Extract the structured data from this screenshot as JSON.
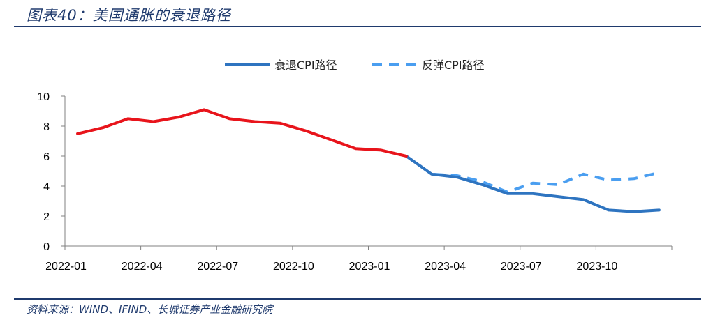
{
  "header": {
    "title": "图表40：美国通胀的衰退路径"
  },
  "footer": {
    "source": "资料来源：WIND、IFIND、长城证券产业金融研究院"
  },
  "colors": {
    "title": "#1f3a6d",
    "historical": "#e8141b",
    "recession": "#2e74c0",
    "rebound": "#4a9ef0"
  },
  "chart_data": {
    "type": "line",
    "ylim": [
      0,
      10
    ],
    "y_ticks": [
      "0",
      "2",
      "4",
      "6",
      "8",
      "10"
    ],
    "x_tick_labels": [
      {
        "label": "2022-01",
        "index": 0
      },
      {
        "label": "2022-04",
        "index": 3
      },
      {
        "label": "2022-07",
        "index": 6
      },
      {
        "label": "2022-10",
        "index": 9
      },
      {
        "label": "2023-01",
        "index": 12
      },
      {
        "label": "2023-04",
        "index": 15
      },
      {
        "label": "2023-07",
        "index": 18
      },
      {
        "label": "2023-10",
        "index": 21
      }
    ],
    "legend": {
      "position": "top-center",
      "items": [
        {
          "label": "衰退CPI路径",
          "series": "recession"
        },
        {
          "label": "反弹CPI路径",
          "series": "rebound"
        }
      ]
    },
    "series": [
      {
        "id": "historical",
        "style": "solid",
        "x": [
          "2022-01",
          "2022-02",
          "2022-03",
          "2022-04",
          "2022-05",
          "2022-06",
          "2022-07",
          "2022-08",
          "2022-09",
          "2022-10",
          "2022-11",
          "2022-12",
          "2023-01",
          "2023-02"
        ],
        "values": [
          7.5,
          7.9,
          8.5,
          8.3,
          8.6,
          9.1,
          8.5,
          8.3,
          8.2,
          7.7,
          7.1,
          6.5,
          6.4,
          6.0
        ]
      },
      {
        "name": "衰退CPI路径",
        "id": "recession",
        "style": "solid",
        "x": [
          "2023-02",
          "2023-03",
          "2023-04",
          "2023-05",
          "2023-06",
          "2023-07",
          "2023-08",
          "2023-09",
          "2023-10",
          "2023-11",
          "2023-12"
        ],
        "values": [
          6.0,
          4.8,
          4.6,
          4.1,
          3.5,
          3.5,
          3.3,
          3.1,
          2.4,
          2.3,
          2.4
        ]
      },
      {
        "name": "反弹CPI路径",
        "id": "rebound",
        "style": "dashed",
        "x": [
          "2023-02",
          "2023-03",
          "2023-04",
          "2023-05",
          "2023-06",
          "2023-07",
          "2023-08",
          "2023-09",
          "2023-10",
          "2023-11",
          "2023-12"
        ],
        "values": [
          6.0,
          4.8,
          4.7,
          4.3,
          3.6,
          4.2,
          4.1,
          4.8,
          4.4,
          4.5,
          4.9
        ]
      }
    ]
  }
}
